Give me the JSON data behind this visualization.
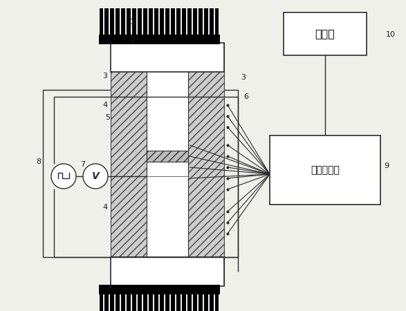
{
  "bg_color": "#f0f0eb",
  "line_color": "#2a2a2a",
  "computer_text": "计算机",
  "dac_text": "数据采集仪",
  "figsize": [
    5.87,
    4.5
  ],
  "dpi": 100
}
